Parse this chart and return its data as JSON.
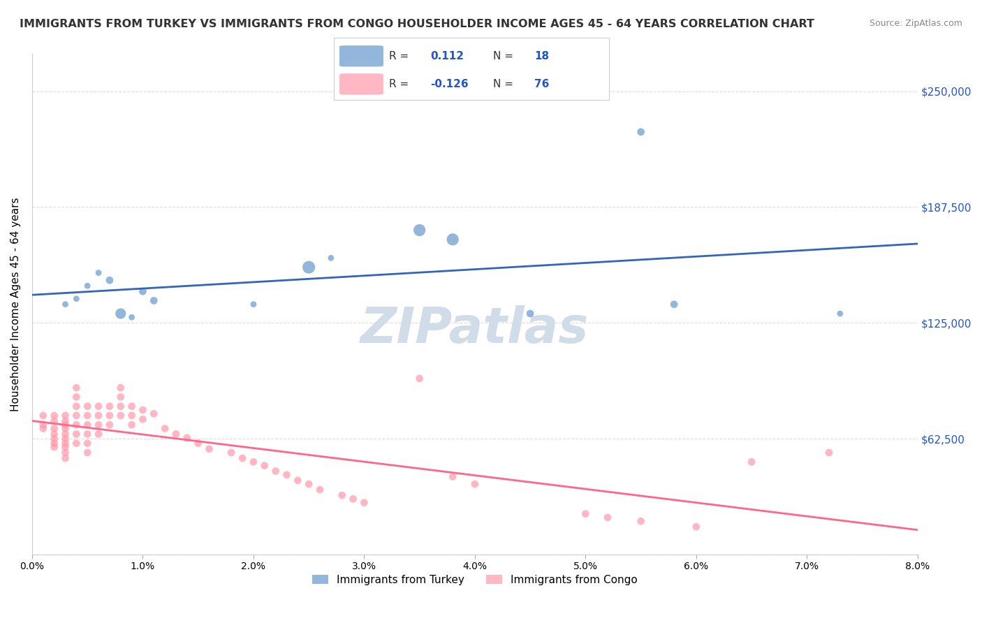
{
  "title": "IMMIGRANTS FROM TURKEY VS IMMIGRANTS FROM CONGO HOUSEHOLDER INCOME AGES 45 - 64 YEARS CORRELATION CHART",
  "source": "Source: ZipAtlas.com",
  "xlabel_bottom": "",
  "ylabel": "Householder Income Ages 45 - 64 years",
  "xlim": [
    0.0,
    0.08
  ],
  "ylim": [
    0,
    270000
  ],
  "xticks": [
    0.0,
    0.01,
    0.02,
    0.03,
    0.04,
    0.05,
    0.06,
    0.07,
    0.08
  ],
  "xticklabels": [
    "0.0%",
    "1.0%",
    "2.0%",
    "3.0%",
    "4.0%",
    "5.0%",
    "6.0%",
    "7.0%",
    "8.0%"
  ],
  "yticks": [
    0,
    62500,
    125000,
    187500,
    250000
  ],
  "yticklabels": [
    "",
    "$62,500",
    "$125,000",
    "$187,500",
    "$250,000"
  ],
  "grid_color": "#dddddd",
  "background_color": "#ffffff",
  "watermark": "ZIPatlas",
  "watermark_color": "#d0dce8",
  "turkey_color": "#6699cc",
  "congo_color": "#ff99aa",
  "turkey_R": 0.112,
  "turkey_N": 18,
  "congo_R": -0.126,
  "congo_N": 76,
  "legend_label_turkey": "Immigrants from Turkey",
  "legend_label_congo": "Immigrants from Congo",
  "turkey_x": [
    0.003,
    0.004,
    0.005,
    0.006,
    0.007,
    0.008,
    0.009,
    0.01,
    0.011,
    0.02,
    0.025,
    0.027,
    0.035,
    0.038,
    0.045,
    0.055,
    0.058,
    0.073
  ],
  "turkey_y": [
    135000,
    138000,
    145000,
    152000,
    148000,
    130000,
    128000,
    142000,
    137000,
    135000,
    155000,
    160000,
    175000,
    170000,
    130000,
    228000,
    135000,
    130000
  ],
  "turkey_size": [
    40,
    40,
    40,
    40,
    60,
    120,
    40,
    60,
    60,
    40,
    170,
    40,
    155,
    155,
    60,
    60,
    60,
    40
  ],
  "congo_x": [
    0.001,
    0.001,
    0.001,
    0.002,
    0.002,
    0.002,
    0.002,
    0.002,
    0.002,
    0.002,
    0.003,
    0.003,
    0.003,
    0.003,
    0.003,
    0.003,
    0.003,
    0.003,
    0.003,
    0.003,
    0.004,
    0.004,
    0.004,
    0.004,
    0.004,
    0.004,
    0.004,
    0.005,
    0.005,
    0.005,
    0.005,
    0.005,
    0.005,
    0.006,
    0.006,
    0.006,
    0.006,
    0.007,
    0.007,
    0.007,
    0.008,
    0.008,
    0.008,
    0.008,
    0.009,
    0.009,
    0.009,
    0.01,
    0.01,
    0.011,
    0.012,
    0.013,
    0.014,
    0.015,
    0.016,
    0.018,
    0.019,
    0.02,
    0.021,
    0.022,
    0.023,
    0.024,
    0.025,
    0.026,
    0.028,
    0.029,
    0.03,
    0.035,
    0.038,
    0.04,
    0.05,
    0.052,
    0.055,
    0.06,
    0.065,
    0.072
  ],
  "congo_y": [
    75000,
    70000,
    68000,
    75000,
    72000,
    68000,
    65000,
    62500,
    60000,
    58000,
    75000,
    72000,
    70000,
    68000,
    65000,
    62500,
    60000,
    58000,
    55000,
    52000,
    90000,
    85000,
    80000,
    75000,
    70000,
    65000,
    60000,
    80000,
    75000,
    70000,
    65000,
    60000,
    55000,
    80000,
    75000,
    70000,
    65000,
    80000,
    75000,
    70000,
    90000,
    85000,
    80000,
    75000,
    80000,
    75000,
    70000,
    78000,
    73000,
    76000,
    68000,
    65000,
    63000,
    60000,
    57000,
    55000,
    52000,
    50000,
    48000,
    45000,
    43000,
    40000,
    38000,
    35000,
    32000,
    30000,
    28000,
    95000,
    42000,
    38000,
    22000,
    20000,
    18000,
    15000,
    50000,
    55000
  ],
  "congo_size": [
    60,
    60,
    60,
    60,
    60,
    60,
    60,
    60,
    60,
    60,
    60,
    60,
    60,
    60,
    60,
    60,
    60,
    60,
    60,
    60,
    60,
    60,
    60,
    60,
    60,
    60,
    60,
    60,
    60,
    60,
    60,
    60,
    60,
    60,
    60,
    60,
    60,
    60,
    60,
    60,
    60,
    60,
    60,
    60,
    60,
    60,
    60,
    60,
    60,
    60,
    60,
    60,
    60,
    60,
    60,
    60,
    60,
    60,
    60,
    60,
    60,
    60,
    60,
    60,
    60,
    60,
    60,
    60,
    60,
    60,
    60,
    60,
    60,
    60,
    60,
    60
  ]
}
